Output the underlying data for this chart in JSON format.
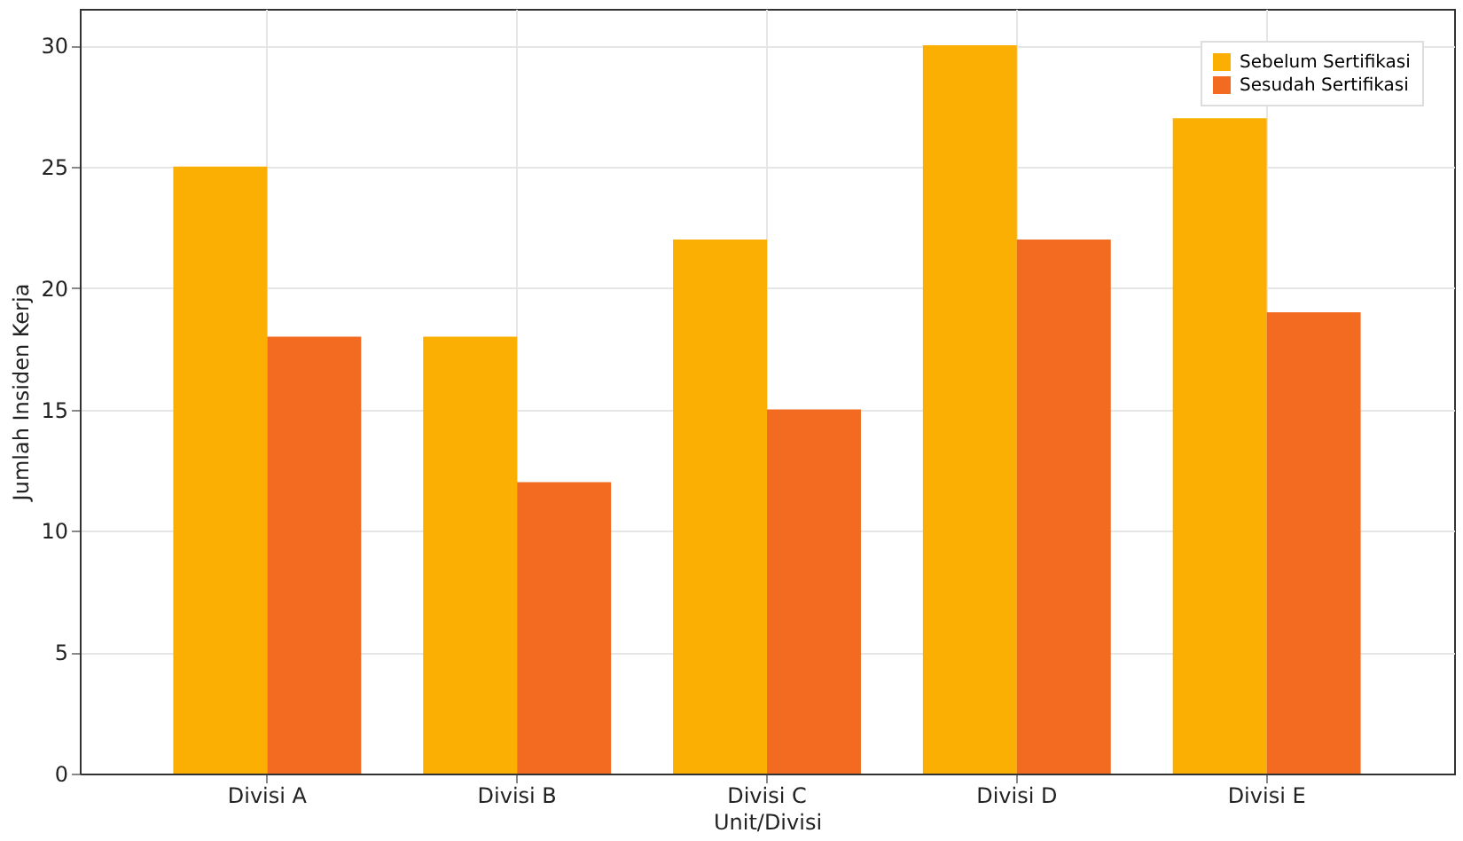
{
  "chart_data": {
    "type": "bar",
    "xlabel": "Unit/Divisi",
    "ylabel": "Jumlah Insiden Kerja",
    "categories": [
      "Divisi A",
      "Divisi B",
      "Divisi C",
      "Divisi D",
      "Divisi E"
    ],
    "series": [
      {
        "name": "Sebelum Sertifikasi",
        "color": "#fcaf03",
        "values": [
          25,
          18,
          22,
          30,
          27
        ]
      },
      {
        "name": "Sesudah Sertifikasi",
        "color": "#f26b21",
        "values": [
          18,
          12,
          15,
          22,
          19
        ]
      }
    ],
    "ylim": [
      0,
      31.5
    ],
    "yticks": [
      0,
      5,
      10,
      15,
      20,
      25,
      30
    ],
    "grid": true,
    "legend": "top right"
  }
}
